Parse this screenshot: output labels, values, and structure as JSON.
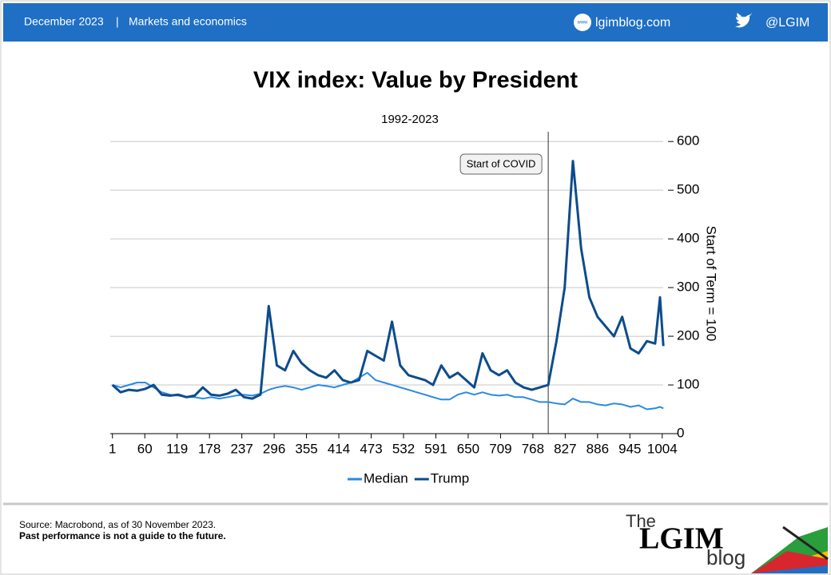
{
  "header": {
    "date": "December 2023",
    "section": "Markets and economics",
    "website": "lgimblog.com",
    "twitter": "@LGIM"
  },
  "chart_data": {
    "type": "line",
    "title": "VIX index: Value by President",
    "subtitle": "1992-2023",
    "y_label": "Start of Term = 100",
    "x": [
      1,
      16,
      31,
      46,
      61,
      76,
      91,
      106,
      121,
      136,
      151,
      166,
      181,
      196,
      211,
      226,
      241,
      256,
      271,
      286,
      301,
      316,
      331,
      346,
      361,
      376,
      391,
      406,
      421,
      436,
      451,
      466,
      481,
      496,
      511,
      526,
      541,
      556,
      571,
      586,
      601,
      616,
      631,
      646,
      661,
      676,
      691,
      706,
      721,
      736,
      751,
      766,
      781,
      796,
      811,
      826,
      841,
      856,
      871,
      886,
      901,
      916,
      931,
      946,
      961,
      976,
      991,
      1000,
      1006
    ],
    "series": [
      {
        "name": "Median",
        "color": "#2a8ae0",
        "values": [
          100,
          95,
          100,
          105,
          105,
          95,
          85,
          80,
          78,
          75,
          75,
          72,
          75,
          72,
          75,
          78,
          80,
          78,
          82,
          90,
          95,
          98,
          95,
          90,
          95,
          100,
          98,
          95,
          100,
          105,
          115,
          125,
          110,
          105,
          100,
          95,
          90,
          85,
          80,
          75,
          70,
          70,
          80,
          85,
          80,
          85,
          80,
          78,
          80,
          75,
          75,
          70,
          65,
          65,
          62,
          60,
          72,
          65,
          65,
          60,
          58,
          62,
          60,
          55,
          58,
          50,
          52,
          55,
          52
        ]
      },
      {
        "name": "Trump",
        "color": "#0d4c8c",
        "values": [
          100,
          85,
          90,
          88,
          92,
          100,
          80,
          78,
          80,
          75,
          78,
          95,
          80,
          78,
          82,
          90,
          75,
          72,
          80,
          262,
          140,
          130,
          170,
          145,
          130,
          120,
          115,
          130,
          110,
          105,
          110,
          170,
          160,
          150,
          230,
          140,
          120,
          115,
          110,
          100,
          140,
          115,
          125,
          110,
          95,
          165,
          130,
          120,
          130,
          105,
          95,
          90,
          95,
          100,
          190,
          300,
          560,
          380,
          280,
          240,
          220,
          200,
          240,
          175,
          165,
          190,
          185,
          280,
          180
        ]
      }
    ],
    "xlim": [
      -3,
      1032
    ],
    "ylim": [
      0,
      620
    ],
    "xticks": [
      1,
      60,
      119,
      178,
      237,
      296,
      355,
      414,
      473,
      532,
      591,
      650,
      709,
      768,
      827,
      886,
      945,
      1004
    ],
    "yticks": [
      0,
      100,
      200,
      300,
      400,
      500,
      600
    ],
    "grid": true,
    "annotation": {
      "text": "Start of COVID",
      "x": 796
    }
  },
  "footer": {
    "source": "Source: Macrobond,  as of 30 November  2023.",
    "disclaimer": "Past performance is not a guide to the future."
  },
  "logo": {
    "the": "The",
    "name": "LGIM",
    "blog": "blog"
  }
}
